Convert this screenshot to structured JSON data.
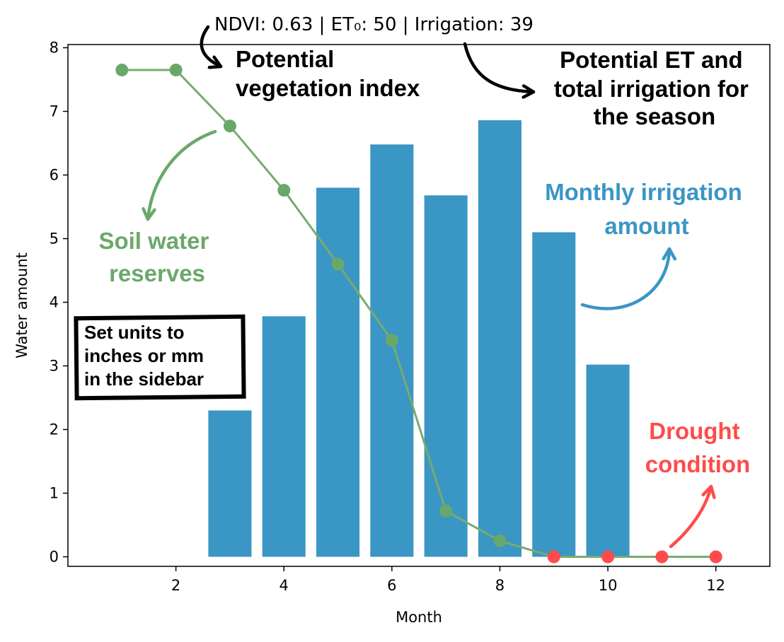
{
  "header": {
    "text": "NDVI: 0.63 | ET₀: 50 | Irrigation: 39"
  },
  "annotations": {
    "potential_vegetation": [
      "Potential",
      "vegetation index"
    ],
    "potential_et": [
      "Potential ET and",
      "total irrigation for",
      "the season"
    ],
    "monthly_irrigation": [
      "Monthly irrigation",
      "amount"
    ],
    "soil_water": [
      "Soil water",
      "reserves"
    ],
    "units_note": [
      "Set units to",
      "inches or mm",
      "in the sidebar"
    ],
    "drought": [
      "Drought",
      "condition"
    ]
  },
  "colors": {
    "bar": "#3a96c4",
    "soil_line": "#78ab6e",
    "soil_point": "#6aa86a",
    "drought_point": "#ff4b4b",
    "irrigation_text": "#3a96c4",
    "soil_text": "#6aa86a",
    "drought_text": "#ff4b4b"
  },
  "chart_data": {
    "type": "bar",
    "xlabel": "Month",
    "ylabel": "Water amount",
    "xlim": [
      0,
      13
    ],
    "ylim": [
      -0.15,
      8.05
    ],
    "xticks": [
      2,
      4,
      6,
      8,
      10,
      12
    ],
    "yticks": [
      0,
      1,
      2,
      3,
      4,
      5,
      6,
      7,
      8
    ],
    "grid": false,
    "series": [
      {
        "kind": "bar",
        "x": [
          3,
          4,
          5,
          6,
          7,
          8,
          9,
          10
        ],
        "values": [
          2.3,
          3.78,
          5.8,
          6.48,
          5.68,
          6.86,
          5.1,
          3.02
        ]
      },
      {
        "kind": "line",
        "x": [
          1,
          2,
          3,
          4,
          5,
          6,
          7,
          8,
          9,
          10,
          11,
          12
        ],
        "values": [
          7.65,
          7.65,
          6.77,
          5.76,
          4.6,
          3.4,
          0.72,
          0.25,
          0,
          0,
          0,
          0
        ],
        "drought_from_index": 8
      }
    ]
  }
}
